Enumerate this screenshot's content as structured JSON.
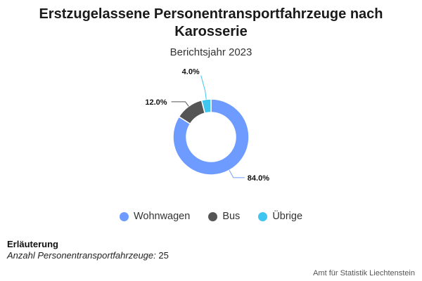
{
  "chart_data": {
    "type": "pie",
    "title": "Erstzugelassene Personentransportfahrzeuge nach Karosserie",
    "subtitle": "Berichtsjahr 2023",
    "categories": [
      "Wohnwagen",
      "Bus",
      "Übrige"
    ],
    "values": [
      84.0,
      12.0,
      4.0
    ],
    "data_labels": [
      "84.0%",
      "12.0%",
      "4.0%"
    ],
    "colors": [
      "#6e9bff",
      "#555555",
      "#3ec6f0"
    ],
    "legend_placement": "bottom",
    "donut": true
  },
  "note": {
    "heading": "Erläuterung",
    "label": "Anzahl Personentransportfahrzeuge:",
    "value": "25"
  },
  "source": "Amt für Statistik Liechtenstein"
}
